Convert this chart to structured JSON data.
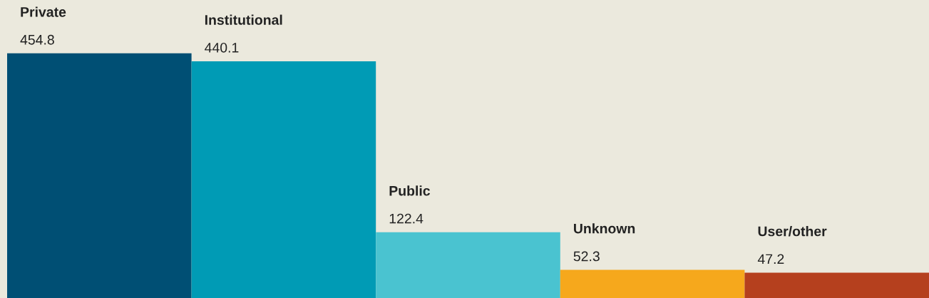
{
  "chart_data": {
    "type": "bar",
    "categories": [
      "Private",
      "Institutional",
      "Public",
      "Unknown",
      "User/other"
    ],
    "values": [
      454.8,
      440.1,
      122.4,
      52.3,
      47.2
    ],
    "colors": [
      "#004f74",
      "#009bb5",
      "#4ac3d0",
      "#f6a81c",
      "#b5401e"
    ],
    "data_labels": true
  }
}
